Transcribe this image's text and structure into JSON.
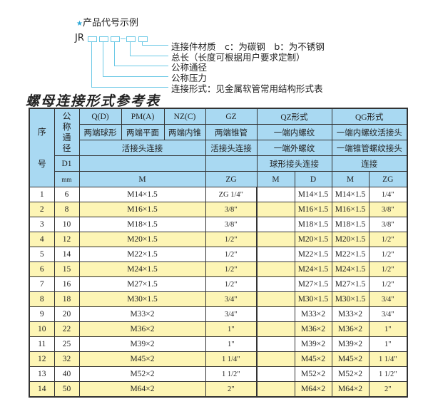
{
  "legend": {
    "title": "产品代号示例",
    "code_prefix": "JR",
    "items": [
      "连接件材质　c：为碳钢　b：为不锈钢",
      "总长（长度可根据用户要求定制）",
      "公称通径",
      "公称压力",
      "连接形式：见金属软管常用结构形式表"
    ]
  },
  "table_title": "螺母连接形式参考表",
  "header": {
    "seq": "序号",
    "nominal": "公称通径",
    "qd": "Q(D)",
    "pma": "PM(A)",
    "nzc": "NZ(C)",
    "gz": "GZ",
    "qz": "QZ形式",
    "qg": "QG形式",
    "qd_desc": "两端球形",
    "pma_desc": "两端平面",
    "nzc_desc": "两端内锥",
    "gz_desc": "两端锥管",
    "qz_desc1": "一端内螺纹",
    "qg_desc1": "一端内螺纹活接头",
    "union": "活接头连接",
    "gz_union": "活接头连接",
    "qz_desc2": "一端外螺纹",
    "qg_desc2": "一端锥管螺纹接头",
    "d1": "D1",
    "qz_desc3": "球形接头连接",
    "qg_desc3": "连接",
    "mm": "mm",
    "m": "M",
    "zg": "ZG",
    "qz_m": "M",
    "qz_d": "D",
    "qg_m": "M",
    "qg_zg": "ZG"
  },
  "rows": [
    {
      "no": "1",
      "d1": "6",
      "m": "M14×1.5",
      "gz": "ZG 1/4\"",
      "qz_m": "",
      "qz_d": "M14×1.5",
      "qg_m": "M14×1.5",
      "qg_zg": "1/4\""
    },
    {
      "no": "2",
      "d1": "8",
      "m": "M16×1.5",
      "gz": "3/8\"",
      "qz_m": "",
      "qz_d": "M16×1.5",
      "qg_m": "M16×1.5",
      "qg_zg": "3/8\""
    },
    {
      "no": "3",
      "d1": "10",
      "m": "M18×1.5",
      "gz": "3/8\"",
      "qz_m": "",
      "qz_d": "M18×1.5",
      "qg_m": "M18×1.5",
      "qg_zg": "3/8\""
    },
    {
      "no": "4",
      "d1": "12",
      "m": "M20×1.5",
      "gz": "1/2\"",
      "qz_m": "",
      "qz_d": "M20×1.5",
      "qg_m": "M20×1.5",
      "qg_zg": "1/2\""
    },
    {
      "no": "5",
      "d1": "14",
      "m": "M22×1.5",
      "gz": "1/2\"",
      "qz_m": "",
      "qz_d": "M22×1.5",
      "qg_m": "M22×1.5",
      "qg_zg": "1/2\""
    },
    {
      "no": "6",
      "d1": "15",
      "m": "M24×1.5",
      "gz": "1/2\"",
      "qz_m": "",
      "qz_d": "M24×1.5",
      "qg_m": "M24×1.5",
      "qg_zg": "1/2\""
    },
    {
      "no": "7",
      "d1": "16",
      "m": "M27×1.5",
      "gz": "1/2\"",
      "qz_m": "",
      "qz_d": "M27×1.5",
      "qg_m": "M27×1.5",
      "qg_zg": "1/2\""
    },
    {
      "no": "8",
      "d1": "18",
      "m": "M30×1.5",
      "gz": "3/4\"",
      "qz_m": "",
      "qz_d": "M30×1.5",
      "qg_m": "M30×1.5",
      "qg_zg": "3/4\""
    },
    {
      "no": "9",
      "d1": "20",
      "m": "M33×2",
      "gz": "3/4\"",
      "qz_m": "",
      "qz_d": "M33×2",
      "qg_m": "M33×2",
      "qg_zg": "3/4\""
    },
    {
      "no": "10",
      "d1": "22",
      "m": "M36×2",
      "gz": "1\"",
      "qz_m": "",
      "qz_d": "M36×2",
      "qg_m": "M36×2",
      "qg_zg": "1\""
    },
    {
      "no": "11",
      "d1": "25",
      "m": "M39×2",
      "gz": "1\"",
      "qz_m": "",
      "qz_d": "M39×2",
      "qg_m": "M39×2",
      "qg_zg": "1\""
    },
    {
      "no": "12",
      "d1": "32",
      "m": "M45×2",
      "gz": "1 1/4\"",
      "qz_m": "",
      "qz_d": "M45×2",
      "qg_m": "M45×2",
      "qg_zg": "1 1/4\""
    },
    {
      "no": "13",
      "d1": "40",
      "m": "M52×2",
      "gz": "1 1/2\"",
      "qz_m": "",
      "qz_d": "M52×2",
      "qg_m": "M52×2",
      "qg_zg": "1 1/2\""
    },
    {
      "no": "14",
      "d1": "50",
      "m": "M64×2",
      "gz": "2\"",
      "qz_m": "",
      "qz_d": "M64×2",
      "qg_m": "M64×2",
      "qg_zg": "2\""
    }
  ],
  "colors": {
    "header_bg": "#a9d9f2",
    "alt_row_bg": "#fdf5b5",
    "legend_line": "#6cc9e6"
  }
}
